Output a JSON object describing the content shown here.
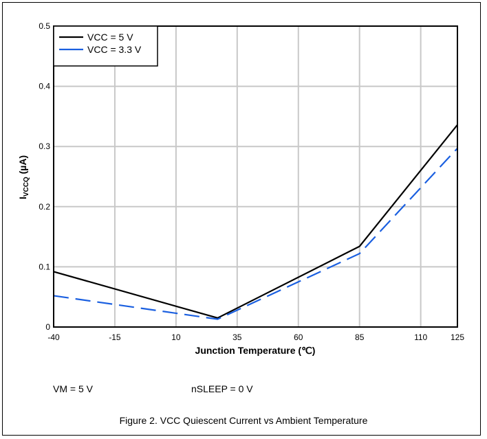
{
  "chart_data": {
    "type": "line",
    "title": "",
    "xlabel": "Junction Temperature (℃)",
    "ylabel_main": "I",
    "ylabel_sub": "VCCQ",
    "ylabel_tail": " (µA)",
    "xlim": [
      -40,
      125
    ],
    "ylim": [
      0,
      0.5
    ],
    "x_ticks": [
      -40,
      -15,
      10,
      35,
      60,
      85,
      110,
      125
    ],
    "x_tick_labels": [
      "-40",
      "-15",
      "10",
      "35",
      "60",
      "85",
      "110",
      "125"
    ],
    "y_ticks": [
      0,
      0.1,
      0.2,
      0.3,
      0.4,
      0.5
    ],
    "y_tick_labels": [
      "0",
      "0.1",
      "0.2",
      "0.3",
      "0.4",
      "0.5"
    ],
    "grid": true,
    "legend_position": "top-left",
    "series": [
      {
        "name": "VCC = 5 V",
        "color": "#000000",
        "style": "solid",
        "x": [
          -40,
          27,
          85,
          125
        ],
        "y": [
          0.092,
          0.015,
          0.134,
          0.336
        ]
      },
      {
        "name": "VCC = 3.3 V",
        "color": "#1a5fe0",
        "style": "dashed",
        "x": [
          -40,
          27,
          85,
          125
        ],
        "y": [
          0.052,
          0.013,
          0.122,
          0.297
        ]
      }
    ]
  },
  "conditions": {
    "vm": "VM = 5 V",
    "nsleep": "nSLEEP = 0 V"
  },
  "caption": "Figure 2. VCC Quiescent Current vs Ambient Temperature"
}
